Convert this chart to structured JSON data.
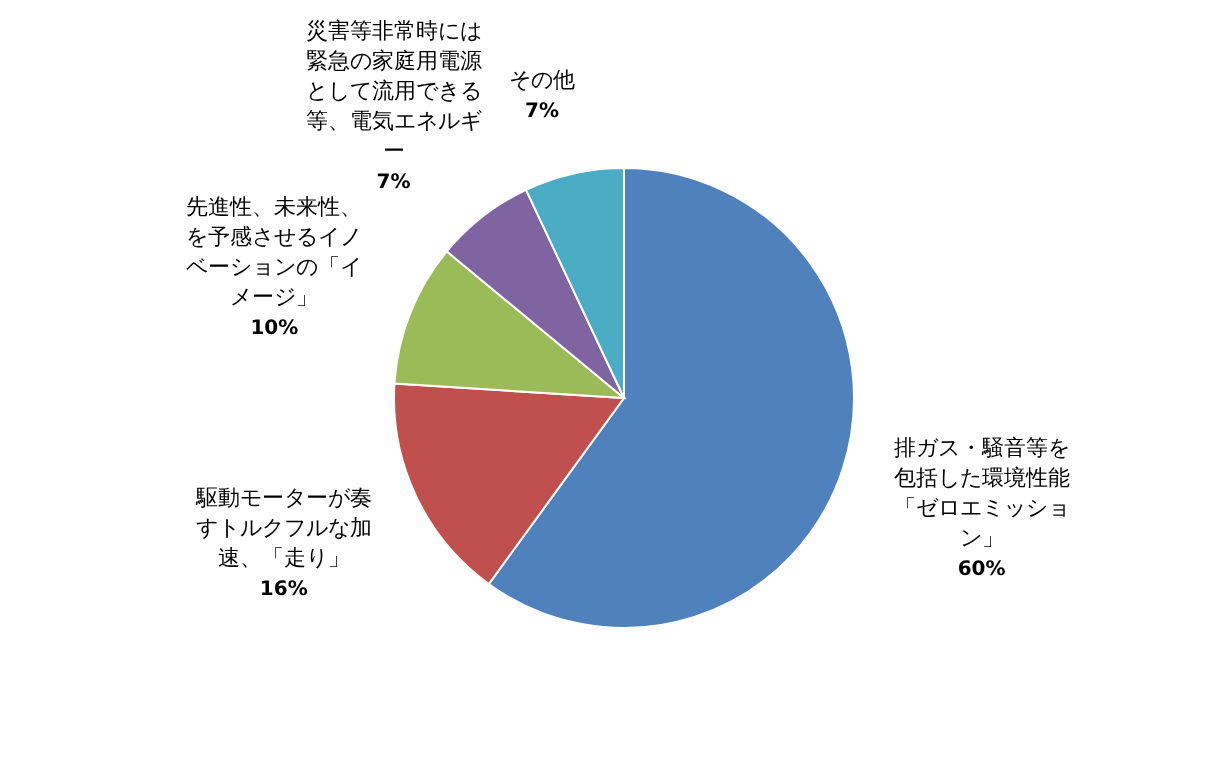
{
  "chart_data": {
    "type": "pie",
    "categories": [
      "排ガス・騒音等を包括した環境性能「ゼロエミッション」",
      "駆動モーターが奏すトルクフルな加速、「走り」",
      "先進性、未来性、を予感させるイノベーションの「イメージ」",
      "災害等非常時には緊急の家庭用電源として流用できる等、電気エネルギー",
      "その他"
    ],
    "values": [
      60,
      16,
      10,
      7,
      7
    ],
    "colors": [
      "#4f81bd",
      "#c0504d",
      "#9bbb59",
      "#8064a2",
      "#4bacc6"
    ],
    "value_labels": [
      "60%",
      "16%",
      "10%",
      "7%",
      "7%"
    ],
    "legend": false
  }
}
